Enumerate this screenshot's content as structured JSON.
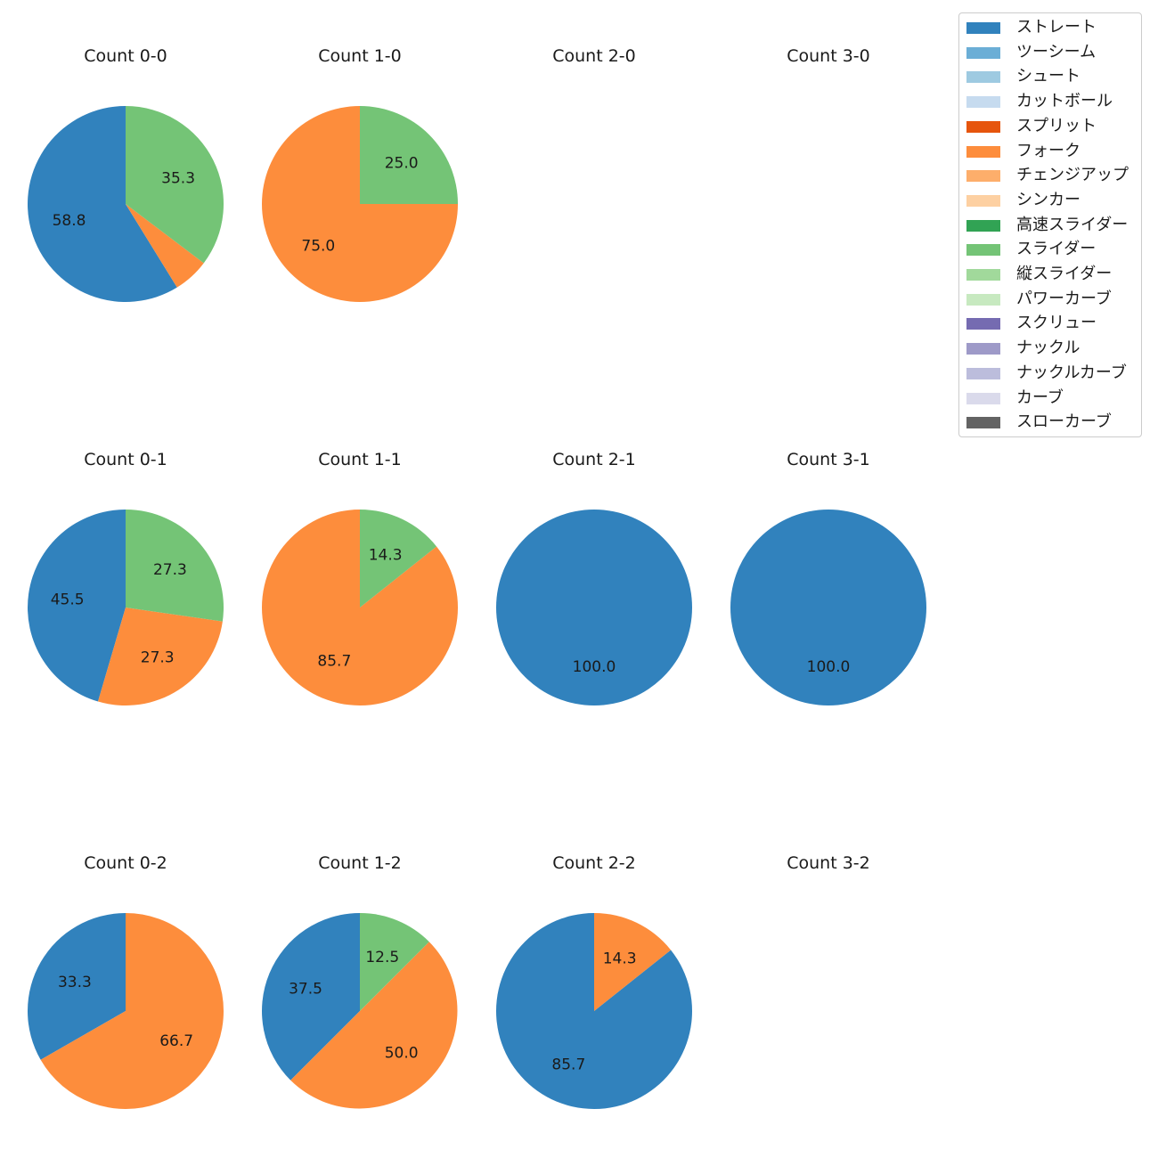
{
  "chart_data": {
    "type": "pie",
    "subplot_grid": {
      "rows": 3,
      "cols": 4
    },
    "legend": {
      "placement": "top-right",
      "entries": [
        {
          "name": "ストレート",
          "color": "#3182bd"
        },
        {
          "name": "ツーシーム",
          "color": "#6baed6"
        },
        {
          "name": "シュート",
          "color": "#9ecae1"
        },
        {
          "name": "カットボール",
          "color": "#c6dbef"
        },
        {
          "name": "スプリット",
          "color": "#e6550d"
        },
        {
          "name": "フォーク",
          "color": "#fd8d3c"
        },
        {
          "name": "チェンジアップ",
          "color": "#fdae6b"
        },
        {
          "name": "シンカー",
          "color": "#fdd0a2"
        },
        {
          "name": "高速スライダー",
          "color": "#31a354"
        },
        {
          "name": "スライダー",
          "color": "#74c476"
        },
        {
          "name": "縦スライダー",
          "color": "#a1d99b"
        },
        {
          "name": "パワーカーブ",
          "color": "#c7e9c0"
        },
        {
          "name": "スクリュー",
          "color": "#756bb1"
        },
        {
          "name": "ナックル",
          "color": "#9e9ac8"
        },
        {
          "name": "ナックルカーブ",
          "color": "#bcbddc"
        },
        {
          "name": "カーブ",
          "color": "#dadaeb"
        },
        {
          "name": "スローカーブ",
          "color": "#636363"
        }
      ]
    },
    "charts": [
      {
        "title": "Count 0-0",
        "row": 0,
        "col": 0,
        "slices": [
          {
            "pitch": "ストレート",
            "value": 58.8,
            "label": "58.8"
          },
          {
            "pitch": "フォーク",
            "value": 5.9,
            "label": ""
          },
          {
            "pitch": "スライダー",
            "value": 35.3,
            "label": "35.3"
          }
        ]
      },
      {
        "title": "Count 1-0",
        "row": 0,
        "col": 1,
        "slices": [
          {
            "pitch": "フォーク",
            "value": 75.0,
            "label": "75.0"
          },
          {
            "pitch": "スライダー",
            "value": 25.0,
            "label": "25.0"
          }
        ]
      },
      {
        "title": "Count 2-0",
        "row": 0,
        "col": 2,
        "slices": []
      },
      {
        "title": "Count 3-0",
        "row": 0,
        "col": 3,
        "slices": []
      },
      {
        "title": "Count 0-1",
        "row": 1,
        "col": 0,
        "slices": [
          {
            "pitch": "ストレート",
            "value": 45.5,
            "label": "45.5"
          },
          {
            "pitch": "フォーク",
            "value": 27.3,
            "label": "27.3"
          },
          {
            "pitch": "スライダー",
            "value": 27.3,
            "label": "27.3"
          }
        ]
      },
      {
        "title": "Count 1-1",
        "row": 1,
        "col": 1,
        "slices": [
          {
            "pitch": "フォーク",
            "value": 85.7,
            "label": "85.7"
          },
          {
            "pitch": "スライダー",
            "value": 14.3,
            "label": "14.3"
          }
        ]
      },
      {
        "title": "Count 2-1",
        "row": 1,
        "col": 2,
        "slices": [
          {
            "pitch": "ストレート",
            "value": 100.0,
            "label": "100.0"
          }
        ]
      },
      {
        "title": "Count 3-1",
        "row": 1,
        "col": 3,
        "slices": [
          {
            "pitch": "ストレート",
            "value": 100.0,
            "label": "100.0"
          }
        ]
      },
      {
        "title": "Count 0-2",
        "row": 2,
        "col": 0,
        "slices": [
          {
            "pitch": "ストレート",
            "value": 33.3,
            "label": "33.3"
          },
          {
            "pitch": "フォーク",
            "value": 66.7,
            "label": "66.7"
          }
        ]
      },
      {
        "title": "Count 1-2",
        "row": 2,
        "col": 1,
        "slices": [
          {
            "pitch": "ストレート",
            "value": 37.5,
            "label": "37.5"
          },
          {
            "pitch": "フォーク",
            "value": 50.0,
            "label": "50.0"
          },
          {
            "pitch": "スライダー",
            "value": 12.5,
            "label": "12.5"
          }
        ]
      },
      {
        "title": "Count 2-2",
        "row": 2,
        "col": 2,
        "slices": [
          {
            "pitch": "ストレート",
            "value": 85.7,
            "label": "85.7"
          },
          {
            "pitch": "フォーク",
            "value": 14.3,
            "label": "14.3"
          }
        ]
      },
      {
        "title": "Count 3-2",
        "row": 2,
        "col": 3,
        "slices": []
      }
    ]
  }
}
